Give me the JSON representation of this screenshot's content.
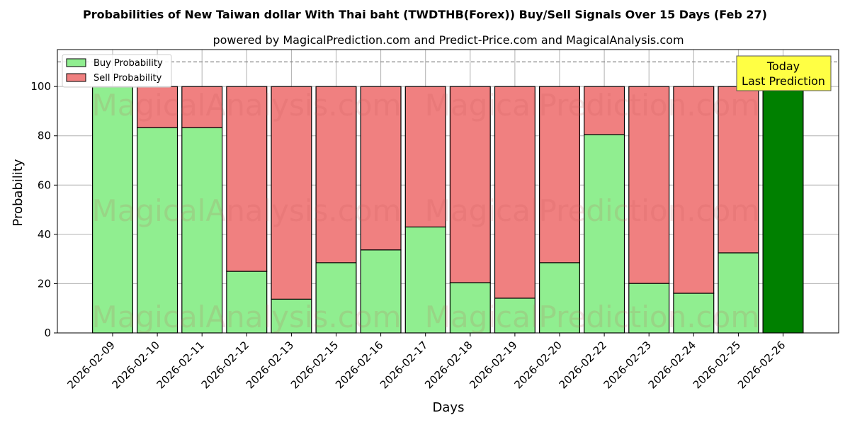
{
  "chart_data": {
    "type": "bar",
    "stacked": true,
    "title": "Probabilities of New Taiwan dollar With Thai baht (TWDTHB(Forex)) Buy/Sell Signals Over 15 Days (Feb 27)",
    "subtitle": "powered by MagicalPrediction.com and Predict-Price.com and MagicalAnalysis.com",
    "xlabel": "Days",
    "ylabel": "Probability",
    "ylim": [
      0,
      115
    ],
    "yticks": [
      0,
      20,
      40,
      60,
      80,
      100
    ],
    "reference_line": 110,
    "grid": true,
    "legend_position": "top-left",
    "categories": [
      "2026-02-09",
      "2026-02-10",
      "2026-02-11",
      "2026-02-12",
      "2026-02-13",
      "2026-02-15",
      "2026-02-16",
      "2026-02-17",
      "2026-02-18",
      "2026-02-19",
      "2026-02-20",
      "2026-02-22",
      "2026-02-23",
      "2026-02-24",
      "2026-02-25",
      "2026-02-26"
    ],
    "series": [
      {
        "name": "Buy Probability",
        "color": "#90ee90",
        "values": [
          100,
          83.3,
          83.3,
          25,
          13.7,
          28.5,
          33.7,
          43,
          20.4,
          14.1,
          28.5,
          80.5,
          20.1,
          16.1,
          32.5,
          100
        ]
      },
      {
        "name": "Sell Probability",
        "color": "#f08080",
        "values": [
          0,
          16.7,
          16.7,
          75,
          86.3,
          71.5,
          66.3,
          57,
          79.6,
          85.9,
          71.5,
          19.5,
          79.9,
          83.9,
          67.5,
          0
        ]
      }
    ],
    "highlight": {
      "index": 15,
      "color": "#008000",
      "label_lines": [
        "Today",
        "Last Prediction"
      ],
      "box_color": "#ffff44"
    },
    "watermarks": [
      "MagicalAnalysis.com",
      "MagicalPrediction.com"
    ]
  }
}
